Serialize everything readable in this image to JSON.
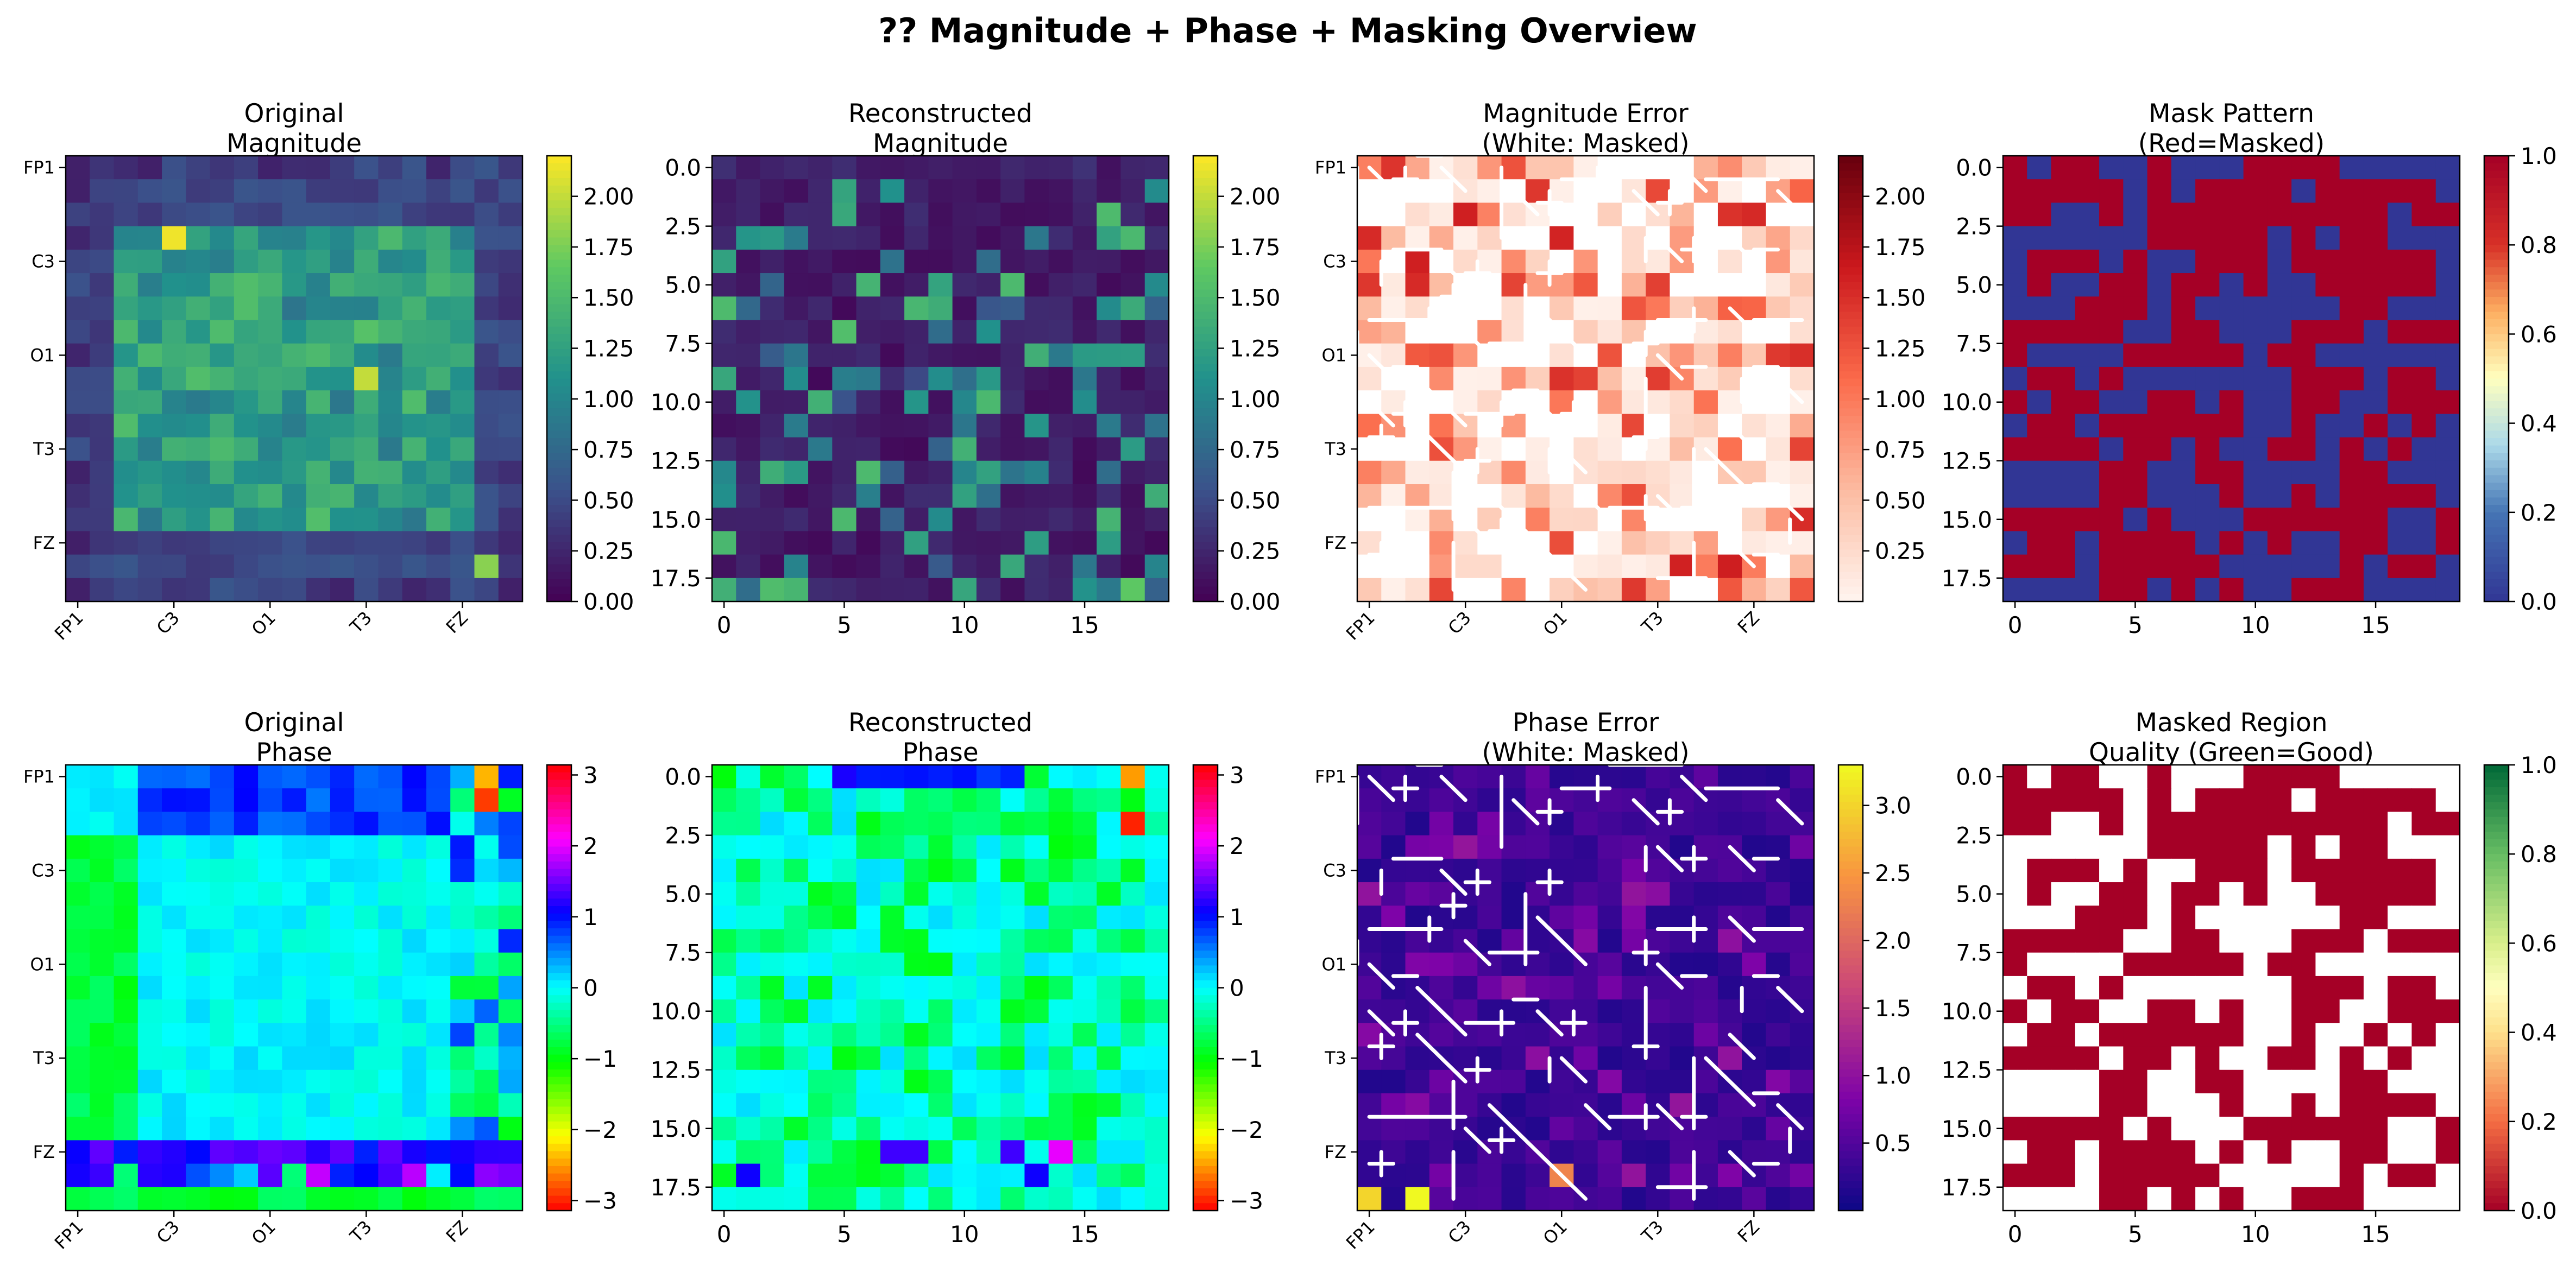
{
  "title": "?? Magnitude + Phase + Masking Overview",
  "chart_data": [
    {
      "type": "heatmap",
      "id": "orig_mag",
      "title": [
        "Original",
        "Magnitude"
      ],
      "cmap": "viridis",
      "clim": [
        0,
        2.2
      ],
      "colorbar_ticks": [
        "0.00",
        "0.25",
        "0.50",
        "0.75",
        "1.00",
        "1.25",
        "1.50",
        "1.75",
        "2.00"
      ],
      "axis": "channels",
      "grid_size": 19
    },
    {
      "type": "heatmap",
      "id": "recon_mag",
      "title": [
        "Reconstructed",
        "Magnitude"
      ],
      "cmap": "viridis",
      "clim": [
        0,
        2.2
      ],
      "colorbar_ticks": [
        "0.00",
        "0.25",
        "0.50",
        "0.75",
        "1.00",
        "1.25",
        "1.50",
        "1.75",
        "2.00"
      ],
      "axis": "numeric",
      "grid_size": 19
    },
    {
      "type": "heatmap",
      "id": "mag_err",
      "title": [
        "Magnitude Error",
        "(White: Masked)"
      ],
      "cmap": "reds",
      "clim": [
        0,
        2.2
      ],
      "colorbar_ticks": [
        "0.25",
        "0.50",
        "0.75",
        "1.00",
        "1.25",
        "1.50",
        "1.75",
        "2.00"
      ],
      "axis": "channels",
      "grid_size": 19
    },
    {
      "type": "heatmap",
      "id": "mask",
      "title": [
        "Mask Pattern",
        "(Red=Masked)"
      ],
      "cmap": "rdylbu_r",
      "clim": [
        0,
        1
      ],
      "colorbar_ticks": [
        "0.0",
        "0.2",
        "0.4",
        "0.6",
        "0.8",
        "1.0"
      ],
      "axis": "numeric",
      "grid_size": 19
    },
    {
      "type": "heatmap",
      "id": "orig_phase",
      "title": [
        "Original",
        "Phase"
      ],
      "cmap": "hsv",
      "clim": [
        -3.14159,
        3.14159
      ],
      "colorbar_ticks": [
        "−3",
        "−2",
        "−1",
        "0",
        "1",
        "2",
        "3"
      ],
      "axis": "channels",
      "grid_size": 19
    },
    {
      "type": "heatmap",
      "id": "recon_phase",
      "title": [
        "Reconstructed",
        "Phase"
      ],
      "cmap": "hsv",
      "clim": [
        -3.14159,
        3.14159
      ],
      "colorbar_ticks": [
        "−3",
        "−2",
        "−1",
        "0",
        "1",
        "2",
        "3"
      ],
      "axis": "numeric",
      "grid_size": 19
    },
    {
      "type": "heatmap",
      "id": "phase_err",
      "title": [
        "Phase Error",
        "(White: Masked)"
      ],
      "cmap": "plasma",
      "clim": [
        0,
        3.3
      ],
      "colorbar_ticks": [
        "0.5",
        "1.0",
        "1.5",
        "2.0",
        "2.5",
        "3.0"
      ],
      "axis": "channels",
      "grid_size": 19
    },
    {
      "type": "heatmap",
      "id": "quality",
      "title": [
        "Masked Region",
        "Quality (Green=Good)"
      ],
      "cmap": "rdylgn",
      "clim": [
        0,
        1
      ],
      "colorbar_ticks": [
        "0.0",
        "0.2",
        "0.4",
        "0.6",
        "0.8",
        "1.0"
      ],
      "axis": "numeric",
      "grid_size": 19
    }
  ],
  "channel_ticks": [
    "FP1",
    "C3",
    "O1",
    "T3",
    "FZ"
  ],
  "numeric_x_ticks": [
    "0",
    "5",
    "10",
    "15"
  ],
  "numeric_y_ticks": [
    "0.0",
    "2.5",
    "5.0",
    "7.5",
    "10.0",
    "12.5",
    "15.0",
    "17.5"
  ],
  "mask_grid": [
    "1011001000111100000",
    "1111101011110111110",
    "1100101111111111011",
    "0000001111101011000",
    "0111010011101111110",
    "0100110110100111110",
    "0001110100000011000",
    "1111100110001110111",
    "1000011111011000000",
    "0110100000001110110",
    "1011001101001100111",
    "0110111111001001010",
    "1111011010011010100",
    "0000110011000011000",
    "0000110001001011110",
    "1111101000111111001",
    "0110111101010011001",
    "1110111110000010110",
    "0000110101001110000"
  ]
}
